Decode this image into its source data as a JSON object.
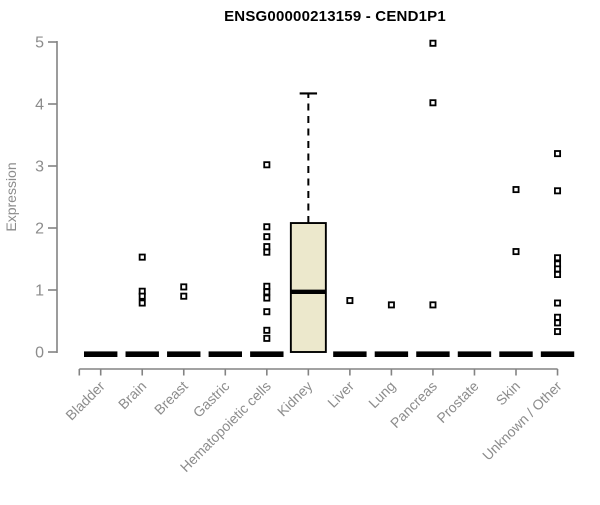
{
  "chart_data": {
    "type": "boxplot",
    "title": "ENSG00000213159 - CEND1P1",
    "ylabel": "Expression",
    "xlabel": "",
    "ylim": [
      0,
      5
    ],
    "yticks": [
      0,
      1,
      2,
      3,
      4,
      5
    ],
    "grid": false,
    "legend": false,
    "categories": [
      "Bladder",
      "Brain",
      "Breast",
      "Gastric",
      "Hematopoietic cells",
      "Kidney",
      "Liver",
      "Lung",
      "Pancreas",
      "Prostate",
      "Skin",
      "Unknown / Other"
    ],
    "series": [
      {
        "category": "Bladder",
        "zero_bar": true,
        "points": []
      },
      {
        "category": "Brain",
        "zero_bar": true,
        "points": [
          1.53,
          0.98,
          0.9,
          0.79
        ]
      },
      {
        "category": "Breast",
        "zero_bar": true,
        "points": [
          1.05,
          0.9
        ]
      },
      {
        "category": "Gastric",
        "zero_bar": true,
        "points": []
      },
      {
        "category": "Hematopoietic cells",
        "zero_bar": true,
        "points": [
          3.02,
          2.02,
          1.86,
          1.7,
          1.61,
          1.06,
          0.97,
          0.87,
          0.65,
          0.35,
          0.22
        ]
      },
      {
        "category": "Kidney",
        "zero_bar": false,
        "points": [],
        "box": {
          "lower_whisker": 0,
          "q1": 0,
          "median": 0.97,
          "q3": 2.08,
          "upper_whisker": 4.17
        }
      },
      {
        "category": "Liver",
        "zero_bar": true,
        "points": [
          0.83
        ]
      },
      {
        "category": "Lung",
        "zero_bar": true,
        "points": [
          0.76
        ]
      },
      {
        "category": "Pancreas",
        "zero_bar": true,
        "points": [
          4.98,
          4.02,
          0.76
        ]
      },
      {
        "category": "Prostate",
        "zero_bar": true,
        "points": []
      },
      {
        "category": "Skin",
        "zero_bar": true,
        "points": [
          2.62,
          1.62
        ]
      },
      {
        "category": "Unknown / Other",
        "zero_bar": true,
        "points": [
          3.2,
          2.6,
          1.52,
          1.42,
          1.34,
          1.25,
          0.79,
          0.56,
          0.47,
          0.33
        ]
      }
    ],
    "colors": {
      "title_color": "#000000",
      "axis_color": "#838383",
      "label_color": "#8c8c8c",
      "point_color": "#000000",
      "zero_bar_color": "#000000",
      "box_fill": "#ece8cc",
      "box_border": "#000000"
    }
  }
}
